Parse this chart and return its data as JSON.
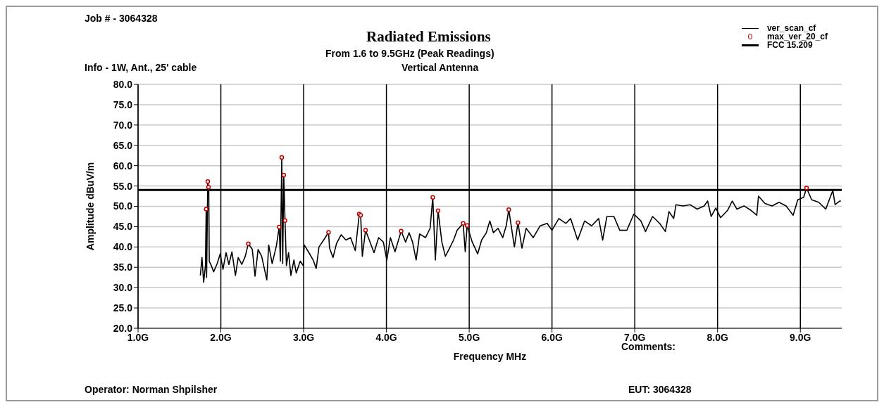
{
  "chart_data": {
    "type": "line",
    "title": "Radiated Emissions",
    "subtitle": "From 1.6 to 9.5GHz (Peak Readings)",
    "xlabel": "Frequency MHz",
    "ylabel": "Amplitude dBuV/m",
    "annotations": [
      "Job # - 3064328",
      "Info - 1W, Ant., 25' cable",
      "Vertical Antenna",
      "Comments:",
      "Operator: Norman Shpilsher",
      "EUT: 3064328"
    ],
    "xlim": [
      1.0,
      9.5
    ],
    "xticks": [
      {
        "value": 1,
        "label": "1.0G"
      },
      {
        "value": 2,
        "label": "2.0G"
      },
      {
        "value": 3,
        "label": "3.0G"
      },
      {
        "value": 4,
        "label": "4.0G"
      },
      {
        "value": 5,
        "label": "5.0G"
      },
      {
        "value": 6,
        "label": "6.0G"
      },
      {
        "value": 7,
        "label": "7.0G"
      },
      {
        "value": 8,
        "label": "8.0G"
      },
      {
        "value": 9,
        "label": "9.0G"
      }
    ],
    "ylim": [
      20,
      80
    ],
    "yticks": [
      {
        "value": 20,
        "label": "20.0"
      },
      {
        "value": 25,
        "label": "25.0"
      },
      {
        "value": 30,
        "label": "30.0"
      },
      {
        "value": 35,
        "label": "35.0"
      },
      {
        "value": 40,
        "label": "40.0"
      },
      {
        "value": 45,
        "label": "45.0"
      },
      {
        "value": 50,
        "label": "50.0"
      },
      {
        "value": 55,
        "label": "55.0"
      },
      {
        "value": 60,
        "label": "60.0"
      },
      {
        "value": 65,
        "label": "65.0"
      },
      {
        "value": 70,
        "label": "70.0"
      },
      {
        "value": 75,
        "label": "75.0"
      },
      {
        "value": 80,
        "label": "80.0"
      }
    ],
    "grid": true,
    "legend": "top right",
    "line_style": "solid",
    "ref_lines": [
      {
        "axis": "y",
        "value": 54,
        "label": "FCC 15.209",
        "color": "#000000"
      }
    ],
    "series": [
      {
        "name": "ver_scan_cf",
        "color": "#000000",
        "marker": "none",
        "x": [
          1.752,
          1.772,
          1.792,
          1.814,
          1.823,
          1.828,
          1.842,
          1.854,
          1.86,
          1.885,
          1.913,
          1.956,
          1.992,
          2.026,
          2.063,
          2.097,
          2.134,
          2.176,
          2.21,
          2.253,
          2.295,
          2.332,
          2.38,
          2.413,
          2.45,
          2.493,
          2.555,
          2.578,
          2.62,
          2.671,
          2.705,
          2.719,
          2.736,
          2.747,
          2.76,
          2.775,
          2.792,
          2.818,
          2.846,
          2.883,
          2.911,
          2.959,
          2.996,
          3.007,
          3.058,
          3.115,
          3.152,
          3.185,
          3.242,
          3.301,
          3.313,
          3.355,
          3.398,
          3.454,
          3.511,
          3.567,
          3.624,
          3.672,
          3.689,
          3.709,
          3.748,
          3.793,
          3.85,
          3.906,
          3.963,
          4.005,
          4.048,
          4.104,
          4.178,
          4.232,
          4.274,
          4.316,
          4.359,
          4.401,
          4.472,
          4.528,
          4.56,
          4.591,
          4.624,
          4.67,
          4.712,
          4.755,
          4.811,
          4.854,
          4.927,
          4.952,
          4.975,
          5.037,
          5.102,
          5.15,
          5.207,
          5.249,
          5.292,
          5.348,
          5.405,
          5.447,
          5.478,
          5.546,
          5.589,
          5.637,
          5.688,
          5.773,
          5.857,
          5.942,
          5.999,
          6.083,
          6.168,
          6.225,
          6.31,
          6.394,
          6.479,
          6.564,
          6.612,
          6.663,
          6.748,
          6.819,
          6.904,
          6.989,
          7.074,
          7.13,
          7.215,
          7.3,
          7.37,
          7.413,
          7.47,
          7.498,
          7.583,
          7.668,
          7.753,
          7.838,
          7.88,
          7.923,
          7.979,
          8.036,
          8.121,
          8.177,
          8.234,
          8.319,
          8.404,
          8.474,
          8.494,
          8.573,
          8.658,
          8.743,
          8.828,
          8.913,
          8.969,
          9.04,
          9.075,
          9.137,
          9.222,
          9.307,
          9.349,
          9.392,
          9.42,
          9.477,
          9.49
        ],
        "values": [
          33.0,
          37.4,
          31.3,
          35.4,
          49.3,
          32.5,
          56.1,
          54.5,
          36.5,
          35.4,
          33.9,
          35.9,
          38.3,
          34.5,
          38.6,
          35.7,
          38.8,
          33.0,
          37.4,
          35.7,
          37.7,
          40.8,
          39.4,
          32.8,
          39.4,
          37.7,
          31.9,
          40.5,
          35.9,
          40.3,
          44.9,
          36.5,
          62.0,
          35.9,
          57.7,
          46.5,
          35.4,
          38.6,
          33.0,
          36.8,
          33.6,
          36.5,
          35.4,
          40.5,
          38.8,
          36.8,
          34.7,
          40.0,
          41.7,
          43.6,
          39.7,
          37.4,
          40.9,
          43.0,
          41.7,
          42.3,
          39.1,
          48.1,
          47.8,
          37.7,
          44.1,
          41.7,
          38.6,
          42.3,
          41.2,
          36.8,
          42.3,
          38.8,
          43.9,
          41.2,
          43.5,
          41.2,
          36.8,
          43.2,
          42.3,
          44.6,
          52.2,
          36.8,
          48.9,
          41.2,
          37.7,
          39.4,
          41.7,
          44.1,
          45.8,
          38.8,
          45.3,
          41.2,
          38.3,
          41.7,
          43.5,
          46.4,
          43.5,
          44.6,
          42.3,
          45.2,
          49.2,
          40.0,
          46.0,
          39.7,
          44.6,
          42.3,
          45.2,
          45.8,
          44.1,
          47.0,
          45.8,
          47.0,
          41.7,
          46.4,
          45.2,
          47.0,
          41.7,
          47.5,
          47.5,
          44.1,
          44.1,
          48.1,
          46.4,
          43.8,
          47.5,
          45.8,
          43.8,
          48.7,
          47.0,
          50.4,
          50.1,
          50.4,
          49.3,
          50.1,
          51.3,
          47.5,
          49.6,
          47.2,
          49.0,
          51.3,
          49.3,
          50.1,
          49.0,
          47.8,
          52.5,
          50.7,
          50.1,
          51.0,
          50.1,
          47.8,
          51.6,
          52.2,
          54.5,
          51.6,
          51.0,
          49.3,
          51.6,
          53.9,
          50.4,
          51.3,
          51.3
        ]
      },
      {
        "name": "max_ver_20_cf",
        "type": "scatter",
        "color": "#c00000",
        "marker": "circle",
        "x": [
          1.823,
          1.842,
          1.851,
          2.332,
          2.705,
          2.736,
          2.76,
          2.775,
          3.301,
          3.672,
          3.689,
          3.748,
          4.178,
          4.56,
          4.624,
          4.927,
          4.975,
          5.478,
          5.589,
          9.075
        ],
        "values": [
          49.3,
          56.1,
          54.7,
          40.8,
          44.9,
          62.0,
          57.7,
          46.5,
          43.6,
          48.1,
          47.8,
          44.1,
          43.9,
          52.2,
          48.9,
          45.8,
          45.3,
          49.2,
          46.0,
          54.5
        ]
      }
    ]
  }
}
